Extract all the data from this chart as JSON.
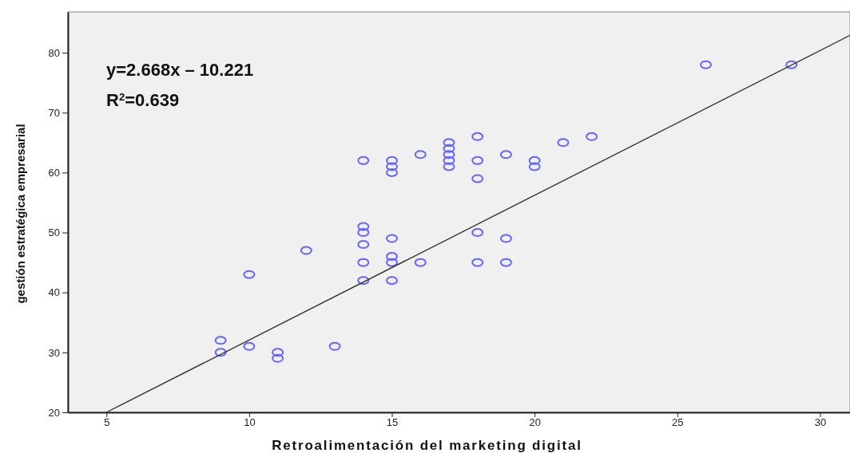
{
  "chart_data": {
    "type": "scatter",
    "xlabel": "Retroalimentación del marketing digital",
    "ylabel": "gestión estratégica empresarial",
    "annotations": [
      "y=2.668x – 10.221",
      "R$^{2}$=0.639"
    ],
    "xlim": [
      3.65,
      31.05
    ],
    "ylim": [
      20,
      86.8
    ],
    "xticks": [
      5,
      10,
      15,
      20,
      25,
      30
    ],
    "yticks": [
      20,
      30,
      40,
      50,
      60,
      70,
      80
    ],
    "marker": "circle",
    "grid": false,
    "series": [
      {
        "color": "#6666ff",
        "x": [
          9,
          9,
          10,
          10,
          11,
          11,
          12,
          13,
          14,
          14,
          14,
          14,
          14,
          14,
          15,
          15,
          15,
          15,
          15,
          15,
          15,
          16,
          16,
          17,
          17,
          17,
          17,
          17,
          18,
          18,
          18,
          18,
          18,
          19,
          19,
          19,
          20,
          20,
          21,
          22,
          26,
          29
        ],
        "values": [
          32,
          30,
          43,
          31,
          30,
          29,
          47,
          31,
          62,
          51,
          50,
          48,
          45,
          42,
          62,
          61,
          60,
          49,
          46,
          45,
          42,
          63,
          45,
          65,
          64,
          63,
          62,
          61,
          66,
          62,
          59,
          50,
          45,
          63,
          49,
          45,
          62,
          61,
          65,
          66,
          78,
          78
        ]
      },
      {
        "type": "line",
        "color": "#333333",
        "marker": "none",
        "line_style": "solid",
        "x": [
          5,
          31.05
        ],
        "values": [
          20,
          82.9
        ]
      }
    ]
  }
}
